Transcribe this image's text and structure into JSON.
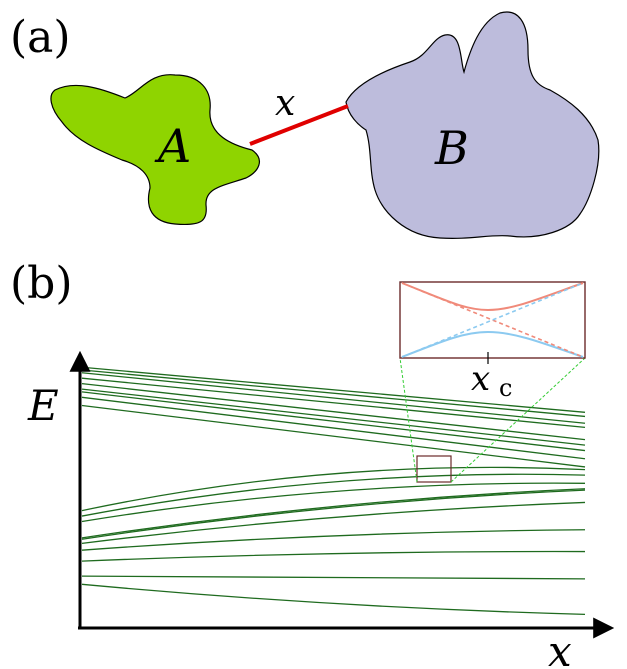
{
  "panel_a": {
    "label": "(a)",
    "region_a_label": "A",
    "region_b_label": "B",
    "link_label": "x",
    "colors": {
      "region_a": "#8fd400",
      "region_b": "#bdbcdc",
      "link": "#e00000"
    }
  },
  "panel_b": {
    "label": "(b)",
    "y_axis_label": "E",
    "x_axis_label": "x",
    "inset_tick_label": "x",
    "inset_tick_subscript": "c",
    "colors": {
      "levels": "#1f6b1f",
      "guide": "#33cc33",
      "inset_frame": "#6b2a2a",
      "upper_branch": "#f08a7a",
      "lower_branch": "#8ccaf0"
    }
  },
  "chart_data": {
    "type": "line",
    "description_free": true,
    "x_domain": [
      0,
      1
    ],
    "levels_y_normalized": {
      "start": [
        0.955,
        0.945,
        0.935,
        0.915,
        0.895,
        0.875,
        0.865,
        0.845,
        0.815,
        0.43,
        0.41,
        0.39,
        0.33,
        0.325,
        0.31,
        0.285,
        0.245,
        0.19,
        0.16
      ],
      "end": [
        0.79,
        0.775,
        0.75,
        0.735,
        0.69,
        0.67,
        0.65,
        0.62,
        0.59,
        0.58,
        0.56,
        0.53,
        0.51,
        0.505,
        0.46,
        0.36,
        0.28,
        0.18,
        0.05
      ]
    },
    "curvature": [
      0,
      0,
      0,
      0,
      0,
      0,
      0,
      0,
      0,
      0.12,
      0.1,
      0.08,
      0.05,
      0.05,
      0.04,
      0.03,
      0.02,
      0.0,
      -0.03
    ]
  }
}
